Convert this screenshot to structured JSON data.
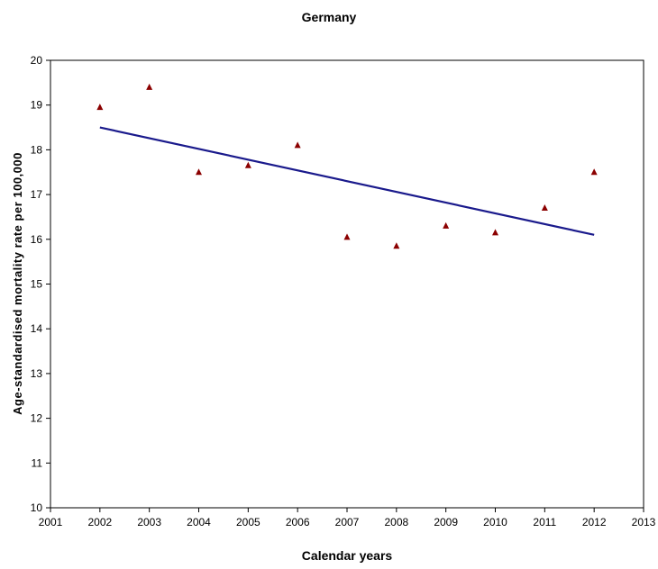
{
  "chart_data": {
    "type": "scatter",
    "title": "Germany",
    "xlabel": "Calendar years",
    "ylabel": "Age-standardised mortality rate per 100,000",
    "xlim": [
      2001,
      2013
    ],
    "ylim": [
      10,
      20
    ],
    "x_ticks": [
      "2001",
      "2002",
      "2003",
      "2004",
      "2005",
      "2006",
      "2007",
      "2008",
      "2009",
      "2010",
      "2011",
      "2012",
      "2013"
    ],
    "y_ticks": [
      "10",
      "11",
      "12",
      "13",
      "14",
      "15",
      "16",
      "17",
      "18",
      "19",
      "20"
    ],
    "grid": false,
    "series": [
      {
        "marker": "triangle",
        "color": "#8b0000",
        "x": [
          2002,
          2003,
          2004,
          2005,
          2006,
          2007,
          2008,
          2009,
          2010,
          2011,
          2012
        ],
        "y": [
          18.95,
          19.4,
          17.5,
          17.65,
          18.1,
          16.05,
          15.85,
          16.3,
          16.15,
          16.7,
          17.5
        ]
      }
    ],
    "trendline": {
      "color": "#1a1a8c",
      "x": [
        2002,
        2012
      ],
      "y": [
        18.5,
        16.1
      ]
    }
  }
}
